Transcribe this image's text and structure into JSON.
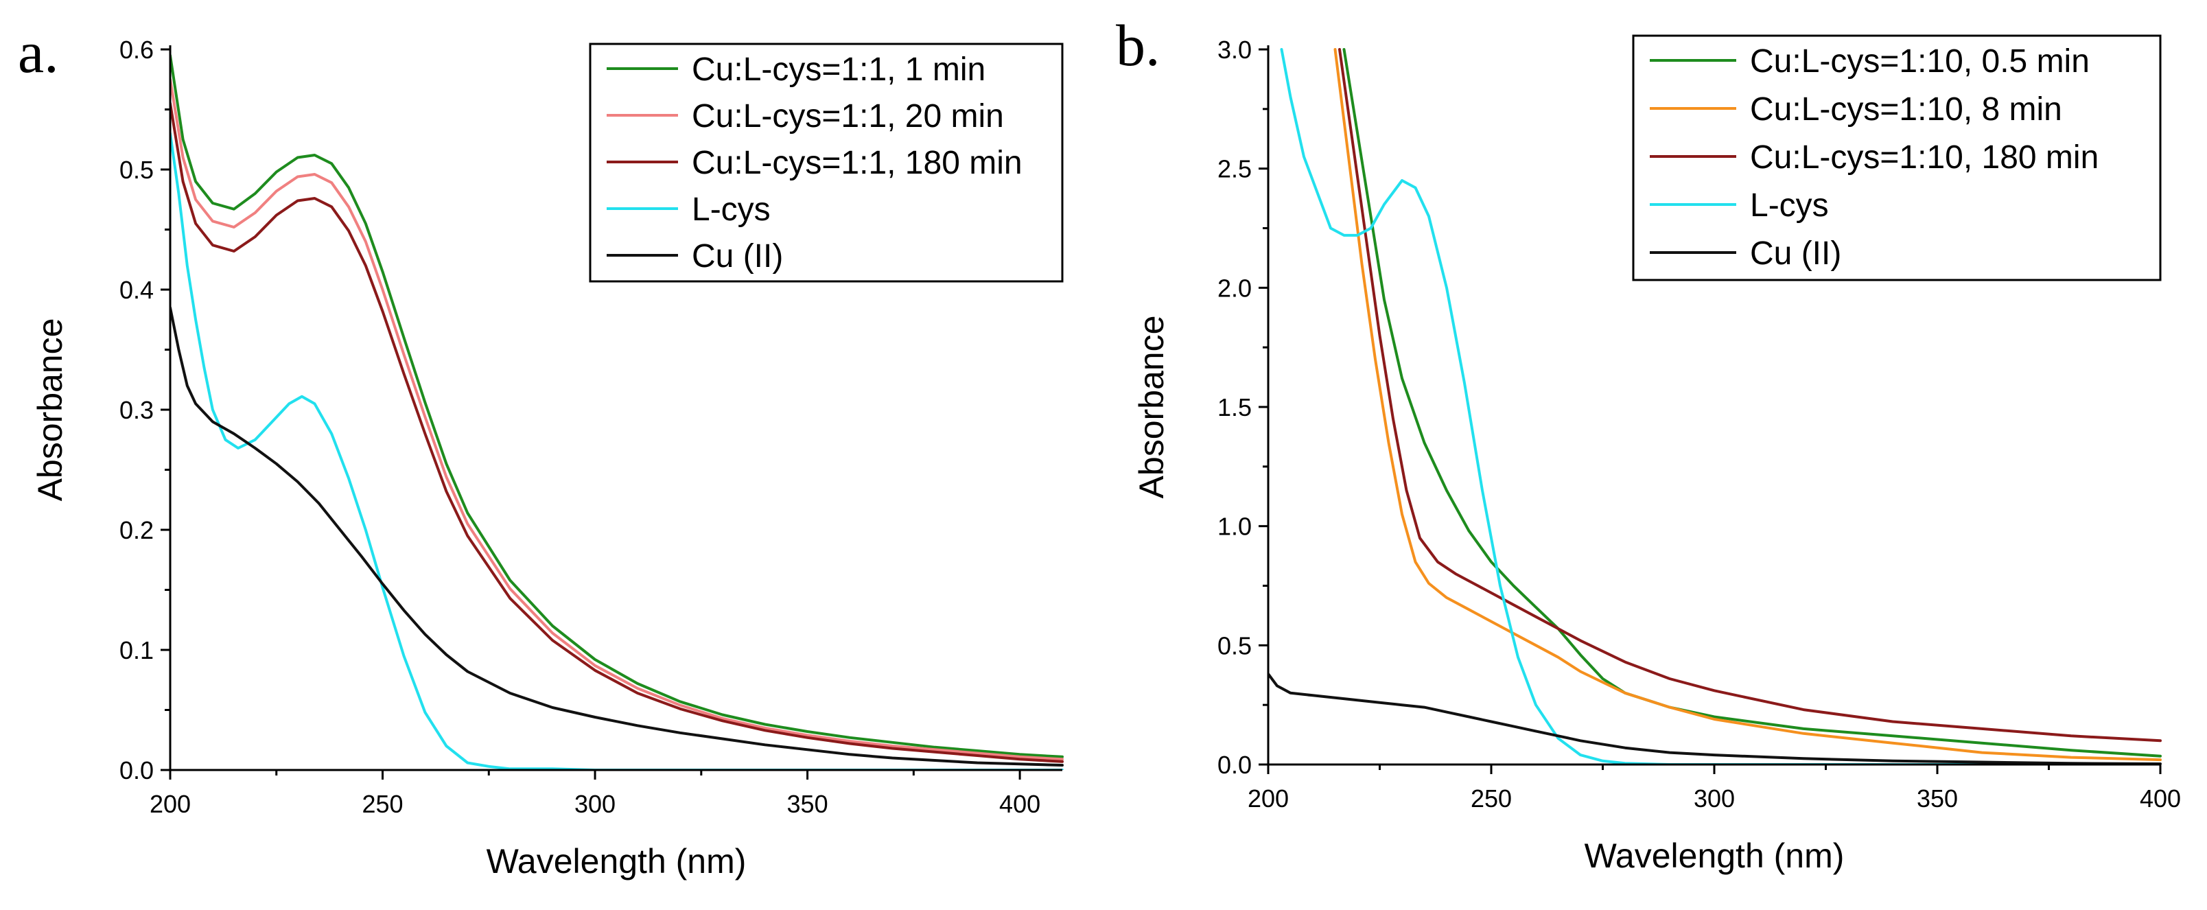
{
  "chart_data": [
    {
      "panel": "a.",
      "type": "line",
      "title": "",
      "xlabel": "Wavelength (nm)",
      "ylabel": "Absorbance",
      "xlim": [
        200,
        410
      ],
      "ylim": [
        0,
        0.6
      ],
      "xticks": [
        200,
        250,
        300,
        350,
        400
      ],
      "xtick_labels": [
        "200",
        "250",
        "300",
        "350",
        "400"
      ],
      "yticks": [
        0.0,
        0.1,
        0.2,
        0.3,
        0.4,
        0.5,
        0.6
      ],
      "ytick_labels": [
        "0.0",
        "0.1",
        "0.2",
        "0.3",
        "0.4",
        "0.5",
        "0.6"
      ],
      "grid": false,
      "legend_position": "top-right",
      "series": [
        {
          "name": "Cu:L-cys=1:1, 1 min",
          "color": "#1e8c1e",
          "x": [
            200,
            203,
            206,
            210,
            215,
            220,
            225,
            230,
            234,
            238,
            242,
            246,
            250,
            255,
            260,
            265,
            270,
            280,
            290,
            300,
            310,
            320,
            330,
            340,
            350,
            360,
            370,
            380,
            390,
            400,
            410
          ],
          "y": [
            0.595,
            0.525,
            0.49,
            0.472,
            0.467,
            0.48,
            0.498,
            0.51,
            0.512,
            0.505,
            0.485,
            0.455,
            0.415,
            0.36,
            0.306,
            0.255,
            0.214,
            0.158,
            0.12,
            0.092,
            0.072,
            0.057,
            0.046,
            0.038,
            0.032,
            0.027,
            0.023,
            0.019,
            0.016,
            0.013,
            0.011
          ]
        },
        {
          "name": "Cu:L-cys=1:1, 20 min",
          "color": "#f08080",
          "x": [
            200,
            203,
            206,
            210,
            215,
            220,
            225,
            230,
            234,
            238,
            242,
            246,
            250,
            255,
            260,
            265,
            270,
            280,
            290,
            300,
            310,
            320,
            330,
            340,
            350,
            360,
            370,
            380,
            390,
            400,
            410
          ],
          "y": [
            0.575,
            0.51,
            0.475,
            0.457,
            0.452,
            0.464,
            0.482,
            0.494,
            0.496,
            0.489,
            0.469,
            0.44,
            0.4,
            0.346,
            0.294,
            0.244,
            0.205,
            0.151,
            0.114,
            0.087,
            0.068,
            0.054,
            0.043,
            0.035,
            0.029,
            0.024,
            0.02,
            0.017,
            0.014,
            0.011,
            0.009
          ]
        },
        {
          "name": "Cu:L-cys=1:1, 180 min",
          "color": "#8b1a1a",
          "x": [
            200,
            203,
            206,
            210,
            215,
            220,
            225,
            230,
            234,
            238,
            242,
            246,
            250,
            255,
            260,
            265,
            270,
            280,
            290,
            300,
            310,
            320,
            330,
            340,
            350,
            360,
            370,
            380,
            390,
            400,
            410
          ],
          "y": [
            0.555,
            0.49,
            0.455,
            0.437,
            0.432,
            0.444,
            0.462,
            0.474,
            0.476,
            0.469,
            0.449,
            0.42,
            0.382,
            0.33,
            0.28,
            0.232,
            0.195,
            0.143,
            0.108,
            0.083,
            0.064,
            0.051,
            0.041,
            0.033,
            0.027,
            0.022,
            0.018,
            0.015,
            0.012,
            0.009,
            0.007
          ]
        },
        {
          "name": "L-cys",
          "color": "#22e0ee",
          "x": [
            200,
            202,
            204,
            206,
            208,
            210,
            213,
            216,
            220,
            224,
            228,
            231,
            234,
            238,
            242,
            246,
            250,
            255,
            260,
            265,
            270,
            275,
            280,
            290,
            300,
            320,
            350,
            380,
            410
          ],
          "y": [
            0.53,
            0.48,
            0.42,
            0.375,
            0.335,
            0.3,
            0.275,
            0.268,
            0.275,
            0.29,
            0.305,
            0.311,
            0.305,
            0.28,
            0.243,
            0.2,
            0.152,
            0.095,
            0.048,
            0.02,
            0.006,
            0.003,
            0.001,
            0.001,
            0.0,
            0.0,
            0.0,
            0.0,
            0.0
          ]
        },
        {
          "name": "Cu (II)",
          "color": "#111111",
          "x": [
            200,
            202,
            204,
            206,
            210,
            215,
            220,
            225,
            230,
            235,
            240,
            245,
            250,
            255,
            260,
            265,
            270,
            280,
            290,
            300,
            310,
            320,
            330,
            340,
            350,
            360,
            370,
            380,
            390,
            400,
            410
          ],
          "y": [
            0.385,
            0.35,
            0.32,
            0.305,
            0.29,
            0.28,
            0.268,
            0.255,
            0.24,
            0.222,
            0.2,
            0.178,
            0.155,
            0.133,
            0.113,
            0.096,
            0.082,
            0.064,
            0.052,
            0.044,
            0.037,
            0.031,
            0.026,
            0.021,
            0.017,
            0.013,
            0.01,
            0.008,
            0.006,
            0.005,
            0.004
          ]
        }
      ]
    },
    {
      "panel": "b.",
      "type": "line",
      "title": "",
      "xlabel": "Wavelength (nm)",
      "ylabel": "Absorbance",
      "xlim": [
        200,
        400
      ],
      "ylim": [
        0,
        3.0
      ],
      "xticks": [
        200,
        250,
        300,
        350,
        400
      ],
      "xtick_labels": [
        "200",
        "250",
        "300",
        "350",
        "400"
      ],
      "yticks": [
        0.0,
        0.5,
        1.0,
        1.5,
        2.0,
        2.5,
        3.0
      ],
      "ytick_labels": [
        "0.0",
        "0.5",
        "1.0",
        "1.5",
        "2.0",
        "2.5",
        "3.0"
      ],
      "grid": false,
      "legend_position": "top-right",
      "series": [
        {
          "name": "Cu:L-cys=1:10, 0.5 min",
          "color": "#1e8c1e",
          "x": [
            217,
            220,
            223,
            226,
            230,
            235,
            240,
            245,
            250,
            255,
            260,
            265,
            270,
            275,
            280,
            290,
            300,
            320,
            340,
            360,
            380,
            400
          ],
          "y": [
            3.0,
            2.65,
            2.3,
            1.95,
            1.62,
            1.35,
            1.15,
            0.98,
            0.85,
            0.75,
            0.66,
            0.57,
            0.46,
            0.36,
            0.3,
            0.24,
            0.2,
            0.15,
            0.12,
            0.09,
            0.06,
            0.035
          ]
        },
        {
          "name": "Cu:L-cys=1:10, 8 min",
          "color": "#f5901e",
          "x": [
            215,
            218,
            221,
            224,
            227,
            230,
            233,
            236,
            240,
            245,
            250,
            255,
            260,
            265,
            270,
            280,
            290,
            300,
            320,
            340,
            360,
            380,
            400
          ],
          "y": [
            3.0,
            2.55,
            2.1,
            1.7,
            1.35,
            1.05,
            0.85,
            0.76,
            0.7,
            0.65,
            0.6,
            0.55,
            0.5,
            0.45,
            0.39,
            0.3,
            0.24,
            0.19,
            0.13,
            0.09,
            0.05,
            0.03,
            0.02
          ]
        },
        {
          "name": "Cu:L-cys=1:10, 180 min",
          "color": "#8b1a1a",
          "x": [
            216,
            219,
            222,
            225,
            228,
            231,
            234,
            238,
            242,
            246,
            250,
            255,
            260,
            265,
            270,
            280,
            290,
            300,
            320,
            340,
            360,
            380,
            400
          ],
          "y": [
            3.0,
            2.6,
            2.2,
            1.8,
            1.45,
            1.15,
            0.95,
            0.85,
            0.8,
            0.76,
            0.72,
            0.67,
            0.62,
            0.57,
            0.52,
            0.43,
            0.36,
            0.31,
            0.23,
            0.18,
            0.15,
            0.12,
            0.1
          ]
        },
        {
          "name": "L-cys",
          "color": "#22e0ee",
          "x": [
            203,
            205,
            208,
            211,
            214,
            217,
            220,
            223,
            226,
            230,
            233,
            236,
            240,
            244,
            248,
            252,
            256,
            260,
            265,
            270,
            275,
            280,
            290,
            300,
            320,
            350,
            400
          ],
          "y": [
            3.0,
            2.8,
            2.55,
            2.4,
            2.25,
            2.22,
            2.22,
            2.25,
            2.35,
            2.45,
            2.42,
            2.3,
            2.0,
            1.6,
            1.15,
            0.75,
            0.45,
            0.25,
            0.11,
            0.04,
            0.015,
            0.005,
            0.0,
            0.0,
            0.0,
            0.0,
            0.0
          ]
        },
        {
          "name": "Cu (II)",
          "color": "#111111",
          "x": [
            200,
            202,
            205,
            210,
            215,
            220,
            225,
            230,
            235,
            240,
            245,
            250,
            255,
            260,
            265,
            270,
            280,
            290,
            300,
            320,
            340,
            360,
            380,
            400
          ],
          "y": [
            0.38,
            0.33,
            0.3,
            0.29,
            0.28,
            0.27,
            0.26,
            0.25,
            0.24,
            0.22,
            0.2,
            0.18,
            0.16,
            0.14,
            0.12,
            0.1,
            0.07,
            0.05,
            0.04,
            0.025,
            0.015,
            0.01,
            0.005,
            0.003
          ]
        }
      ]
    }
  ]
}
